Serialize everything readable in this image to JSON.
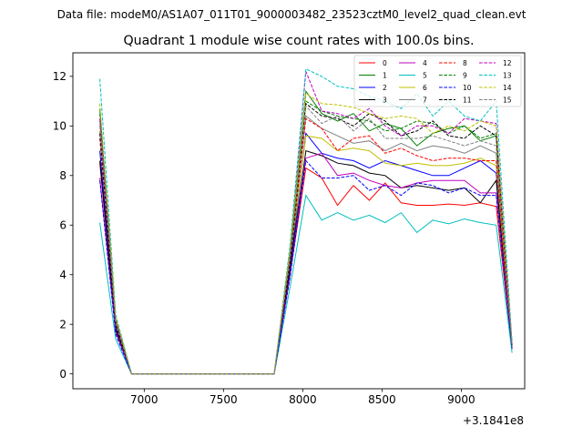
{
  "figure": {
    "suptitle": "Data file: modeM0/AS1A07_011T01_9000003482_23523cztM0_level2_quad_clean.evt",
    "offset_text": "+3.1841e8"
  },
  "chart_data": {
    "type": "line",
    "title": "Quadrant 1 module wise count rates with 100.0s bins.",
    "xlabel": "",
    "ylabel": "",
    "xlim": [
      6550,
      9400
    ],
    "ylim": [
      -0.6,
      12.95
    ],
    "x_ticks": [
      7000,
      7500,
      8000,
      8500,
      9000
    ],
    "x_tick_labels": [
      "7000",
      "7500",
      "8000",
      "8500",
      "9000"
    ],
    "y_ticks": [
      0,
      2,
      4,
      6,
      8,
      10,
      12
    ],
    "y_tick_labels": [
      "0",
      "2",
      "4",
      "6",
      "8",
      "10",
      "12"
    ],
    "grid": false,
    "legend": {
      "position": "top-right",
      "columns": 4
    },
    "x": [
      6720,
      6820,
      6920,
      7020,
      7120,
      7220,
      7320,
      7420,
      7520,
      7620,
      7720,
      7820,
      7920,
      8020,
      8120,
      8220,
      8320,
      8420,
      8520,
      8620,
      8720,
      8820,
      8920,
      9020,
      9120,
      9220,
      9320
    ],
    "series": [
      {
        "name": "0",
        "color": "#ff0000",
        "dash": "solid",
        "values": [
          8.5,
          1.8,
          0,
          0,
          0,
          0,
          0,
          0,
          0,
          0,
          0,
          0,
          4.0,
          8.3,
          7.9,
          6.8,
          7.6,
          7.0,
          7.7,
          6.9,
          6.8,
          6.8,
          6.85,
          6.8,
          6.9,
          6.75,
          1.0
        ]
      },
      {
        "name": "1",
        "color": "#008000",
        "dash": "solid",
        "values": [
          10.7,
          2.2,
          0,
          0,
          0,
          0,
          0,
          0,
          0,
          0,
          0,
          0,
          4.9,
          11.4,
          10.5,
          10.2,
          10.5,
          9.8,
          10.1,
          9.9,
          9.2,
          9.7,
          9.9,
          10.0,
          9.4,
          9.6,
          1.2
        ]
      },
      {
        "name": "2",
        "color": "#0000ff",
        "dash": "solid",
        "values": [
          9.0,
          1.9,
          0,
          0,
          0,
          0,
          0,
          0,
          0,
          0,
          0,
          0,
          4.3,
          9.7,
          8.9,
          8.7,
          8.6,
          8.3,
          8.6,
          8.4,
          8.2,
          8.0,
          8.0,
          8.3,
          8.6,
          8.1,
          1.1
        ]
      },
      {
        "name": "3",
        "color": "#000000",
        "dash": "solid",
        "values": [
          8.6,
          1.8,
          0,
          0,
          0,
          0,
          0,
          0,
          0,
          0,
          0,
          0,
          4.2,
          9.0,
          8.8,
          8.5,
          8.4,
          8.1,
          8.0,
          7.5,
          7.6,
          7.5,
          7.4,
          7.5,
          6.9,
          7.8,
          1.0
        ]
      },
      {
        "name": "4",
        "color": "#bf00bf",
        "dash": "solid",
        "values": [
          7.9,
          1.7,
          0,
          0,
          0,
          0,
          0,
          0,
          0,
          0,
          0,
          0,
          4.0,
          8.7,
          8.9,
          8.0,
          8.1,
          7.8,
          7.6,
          7.5,
          7.7,
          7.8,
          7.8,
          7.8,
          7.3,
          7.3,
          1.0
        ]
      },
      {
        "name": "5",
        "color": "#00bfbf",
        "dash": "solid",
        "values": [
          6.1,
          1.4,
          0,
          0,
          0,
          0,
          0,
          0,
          0,
          0,
          0,
          0,
          3.5,
          7.2,
          6.2,
          6.5,
          6.2,
          6.4,
          6.1,
          6.5,
          5.7,
          6.2,
          6.05,
          6.25,
          6.1,
          6.0,
          0.85
        ]
      },
      {
        "name": "6",
        "color": "#bfbf00",
        "dash": "solid",
        "values": [
          9.8,
          2.0,
          0,
          0,
          0,
          0,
          0,
          0,
          0,
          0,
          0,
          0,
          4.6,
          9.6,
          9.5,
          9.0,
          9.1,
          9.0,
          8.5,
          8.4,
          8.5,
          8.4,
          8.4,
          8.5,
          8.7,
          8.4,
          1.1
        ]
      },
      {
        "name": "7",
        "color": "#808080",
        "dash": "solid",
        "values": [
          10.2,
          2.1,
          0,
          0,
          0,
          0,
          0,
          0,
          0,
          0,
          0,
          0,
          4.7,
          10.4,
          9.9,
          9.6,
          9.3,
          9.4,
          9.0,
          9.3,
          9.0,
          9.2,
          9.1,
          8.9,
          9.2,
          8.9,
          1.1
        ]
      },
      {
        "name": "8",
        "color": "#ff0000",
        "dash": "dashed",
        "values": [
          9.5,
          2.0,
          0,
          0,
          0,
          0,
          0,
          0,
          0,
          0,
          0,
          0,
          4.5,
          10.3,
          9.9,
          9.0,
          9.5,
          9.6,
          8.9,
          9.1,
          8.8,
          8.6,
          8.7,
          8.7,
          8.6,
          8.6,
          1.1
        ]
      },
      {
        "name": "9",
        "color": "#008000",
        "dash": "dashed",
        "values": [
          10.5,
          2.2,
          0,
          0,
          0,
          0,
          0,
          0,
          0,
          0,
          0,
          0,
          5.0,
          11.0,
          10.6,
          10.4,
          10.3,
          10.2,
          9.8,
          9.9,
          10.2,
          10.1,
          9.7,
          10.0,
          9.5,
          9.7,
          1.2
        ]
      },
      {
        "name": "10",
        "color": "#0000ff",
        "dash": "dashed",
        "values": [
          7.8,
          1.6,
          0,
          0,
          0,
          0,
          0,
          0,
          0,
          0,
          0,
          0,
          3.9,
          8.6,
          7.9,
          7.9,
          8.0,
          7.4,
          7.6,
          7.2,
          7.7,
          7.6,
          7.3,
          7.5,
          7.2,
          7.2,
          1.0
        ]
      },
      {
        "name": "11",
        "color": "#000000",
        "dash": "dashed",
        "values": [
          9.7,
          2.0,
          0,
          0,
          0,
          0,
          0,
          0,
          0,
          0,
          0,
          0,
          4.5,
          10.9,
          10.4,
          10.3,
          10.0,
          10.5,
          10.2,
          9.6,
          9.8,
          10.2,
          9.6,
          9.5,
          10.0,
          9.6,
          1.1
        ]
      },
      {
        "name": "12",
        "color": "#bf00bf",
        "dash": "dashed",
        "values": [
          10.3,
          2.2,
          0,
          0,
          0,
          0,
          0,
          0,
          0,
          0,
          0,
          0,
          4.9,
          12.2,
          10.6,
          10.5,
          10.3,
          10.7,
          10.0,
          9.6,
          10.0,
          10.0,
          9.7,
          10.3,
          10.2,
          10.1,
          1.2
        ]
      },
      {
        "name": "13",
        "color": "#00bfbf",
        "dash": "dashed",
        "values": [
          11.9,
          2.4,
          0,
          0,
          0,
          0,
          0,
          0,
          0,
          0,
          0,
          0,
          5.2,
          12.3,
          12.0,
          11.6,
          11.5,
          11.2,
          11.0,
          10.7,
          11.3,
          10.4,
          11.0,
          10.4,
          10.2,
          11.0,
          1.3
        ]
      },
      {
        "name": "14",
        "color": "#bfbf00",
        "dash": "dashed",
        "values": [
          10.9,
          2.3,
          0,
          0,
          0,
          0,
          0,
          0,
          0,
          0,
          0,
          0,
          5.0,
          11.3,
          10.9,
          10.85,
          10.75,
          10.5,
          10.3,
          10.4,
          10.3,
          9.7,
          10.0,
          9.8,
          10.2,
          10.0,
          1.2
        ]
      },
      {
        "name": "15",
        "color": "#808080",
        "dash": "dashed",
        "values": [
          10.0,
          2.1,
          0,
          0,
          0,
          0,
          0,
          0,
          0,
          0,
          0,
          0,
          4.7,
          10.8,
          10.1,
          10.4,
          9.8,
          10.3,
          9.5,
          9.5,
          9.5,
          9.6,
          9.4,
          9.2,
          9.4,
          9.2,
          1.1
        ]
      }
    ]
  }
}
